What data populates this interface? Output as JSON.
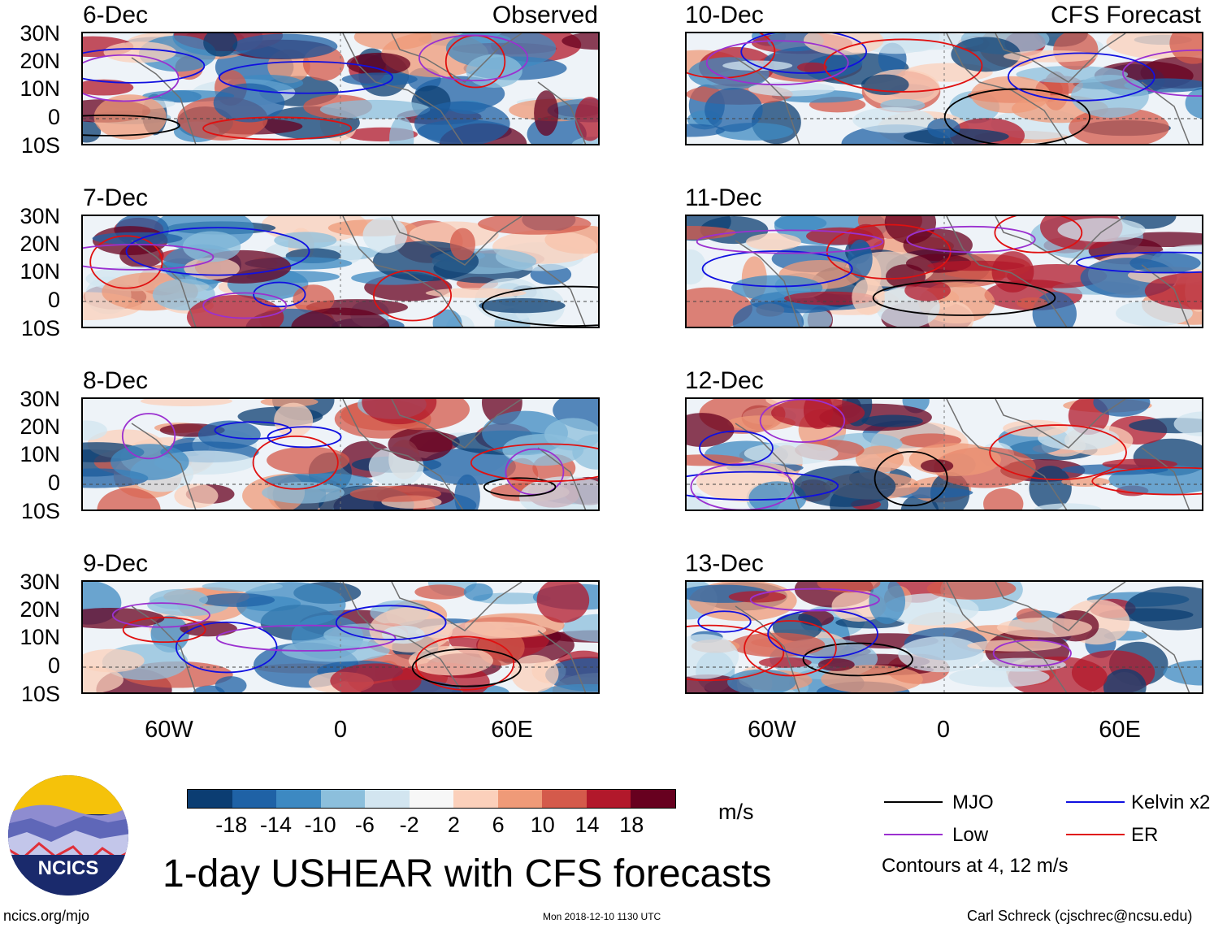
{
  "header": {
    "observed_label": "Observed",
    "forecast_label": "CFS Forecast"
  },
  "panels": [
    {
      "date": "6-Dec",
      "kind": "observed"
    },
    {
      "date": "7-Dec",
      "kind": "observed"
    },
    {
      "date": "8-Dec",
      "kind": "observed"
    },
    {
      "date": "9-Dec",
      "kind": "observed"
    },
    {
      "date": "10-Dec",
      "kind": "forecast"
    },
    {
      "date": "11-Dec",
      "kind": "forecast"
    },
    {
      "date": "12-Dec",
      "kind": "forecast"
    },
    {
      "date": "13-Dec",
      "kind": "forecast"
    }
  ],
  "axes": {
    "lat_labels": [
      "30N",
      "20N",
      "10N",
      "0",
      "10S"
    ],
    "lon_labels": [
      "60W",
      "0",
      "60E"
    ]
  },
  "colorbar": {
    "unit": "m/s",
    "tick_labels": [
      "-18",
      "-14",
      "-10",
      "-6",
      "-2",
      "2",
      "6",
      "10",
      "14",
      "18"
    ],
    "colors": [
      "#0b3d72",
      "#1f62a6",
      "#3d89c2",
      "#8cbfdc",
      "#d2e5f0",
      "#f7f7f7",
      "#fbd0bb",
      "#ef9a78",
      "#d45a4b",
      "#b2182b",
      "#67001f"
    ]
  },
  "legend": {
    "items": [
      {
        "label": "MJO",
        "color": "#000000"
      },
      {
        "label": "Kelvin x2",
        "color": "#1010e0"
      },
      {
        "label": "Low",
        "color": "#9b30d0"
      },
      {
        "label": "ER",
        "color": "#e01010"
      }
    ],
    "contours_note": "Contours at 4, 12 m/s"
  },
  "footer": {
    "title": "1-day USHEAR with CFS forecasts",
    "logo_text": "NCICS",
    "website": "ncics.org/mjo",
    "timestamp": "Mon 2018-12-10 1130 UTC",
    "author": "Carl Schreck (cjschrec@ncsu.edu)"
  }
}
